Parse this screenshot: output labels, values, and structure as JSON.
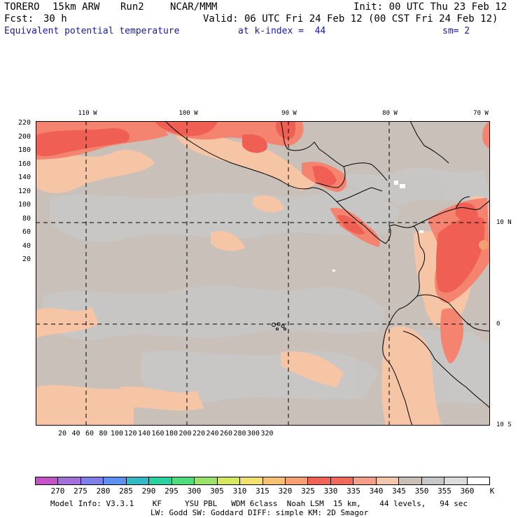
{
  "header": {
    "model": "TORERO",
    "resolution": "15km ARW",
    "run": "Run2",
    "org": "NCAR/MMM",
    "init": "Init: 00 UTC Thu 23 Feb 12",
    "fcst_label": "Fcst:",
    "fcst_value": "30 h",
    "valid": "Valid: 06 UTC Fri 24 Feb 12 (00 CST Fri 24 Feb 12)",
    "field": "Equivalent potential temperature",
    "kindex": "at k-index =  44",
    "smooth": "sm= 2"
  },
  "map": {
    "lon_labels": [
      "110 W",
      "100 W",
      "90 W",
      "80 W",
      "70 W"
    ],
    "lat_labels": [
      "10 N",
      "0",
      "10 S"
    ],
    "x_ticks": [
      "20",
      "40",
      "60",
      "80",
      "100",
      "120",
      "140",
      "160",
      "180",
      "200",
      "220",
      "240",
      "260",
      "280",
      "300",
      "320"
    ],
    "y_ticks": [
      "220",
      "200",
      "180",
      "160",
      "140",
      "120",
      "100",
      "80",
      "60",
      "40",
      "20"
    ],
    "background_color": "#c9c0b9",
    "ocean_gray": "#c8c8c8",
    "warm_color": "#f6c5a6",
    "hot_color": "#f4836f",
    "hottest_color": "#f05f53"
  },
  "colorbar": {
    "units": "K",
    "labels": [
      "270",
      "275",
      "280",
      "285",
      "290",
      "295",
      "300",
      "305",
      "310",
      "315",
      "320",
      "325",
      "330",
      "335",
      "340",
      "345",
      "350",
      "355",
      "360"
    ],
    "colors": [
      "#c354c8",
      "#a36fd8",
      "#7f7fe8",
      "#5f8ff0",
      "#33b8c8",
      "#2ad0a0",
      "#4fdc7a",
      "#9ae26a",
      "#d6e85f",
      "#f2e070",
      "#f6c073",
      "#f4a072",
      "#f06255",
      "#f06a5c",
      "#f4a088",
      "#f4c6ae",
      "#cbc0b6",
      "#c8c8c8",
      "#dcdcdc",
      "#ffffff"
    ]
  },
  "footer": {
    "line1": "Model Info: V3.3.1    KF     YSU PBL   WDM 6class  Noah LSM  15 km,    44 levels,   94 sec",
    "line2": "LW: Godd SW: Goddard DIFF: simple KM: 2D Smagor"
  }
}
